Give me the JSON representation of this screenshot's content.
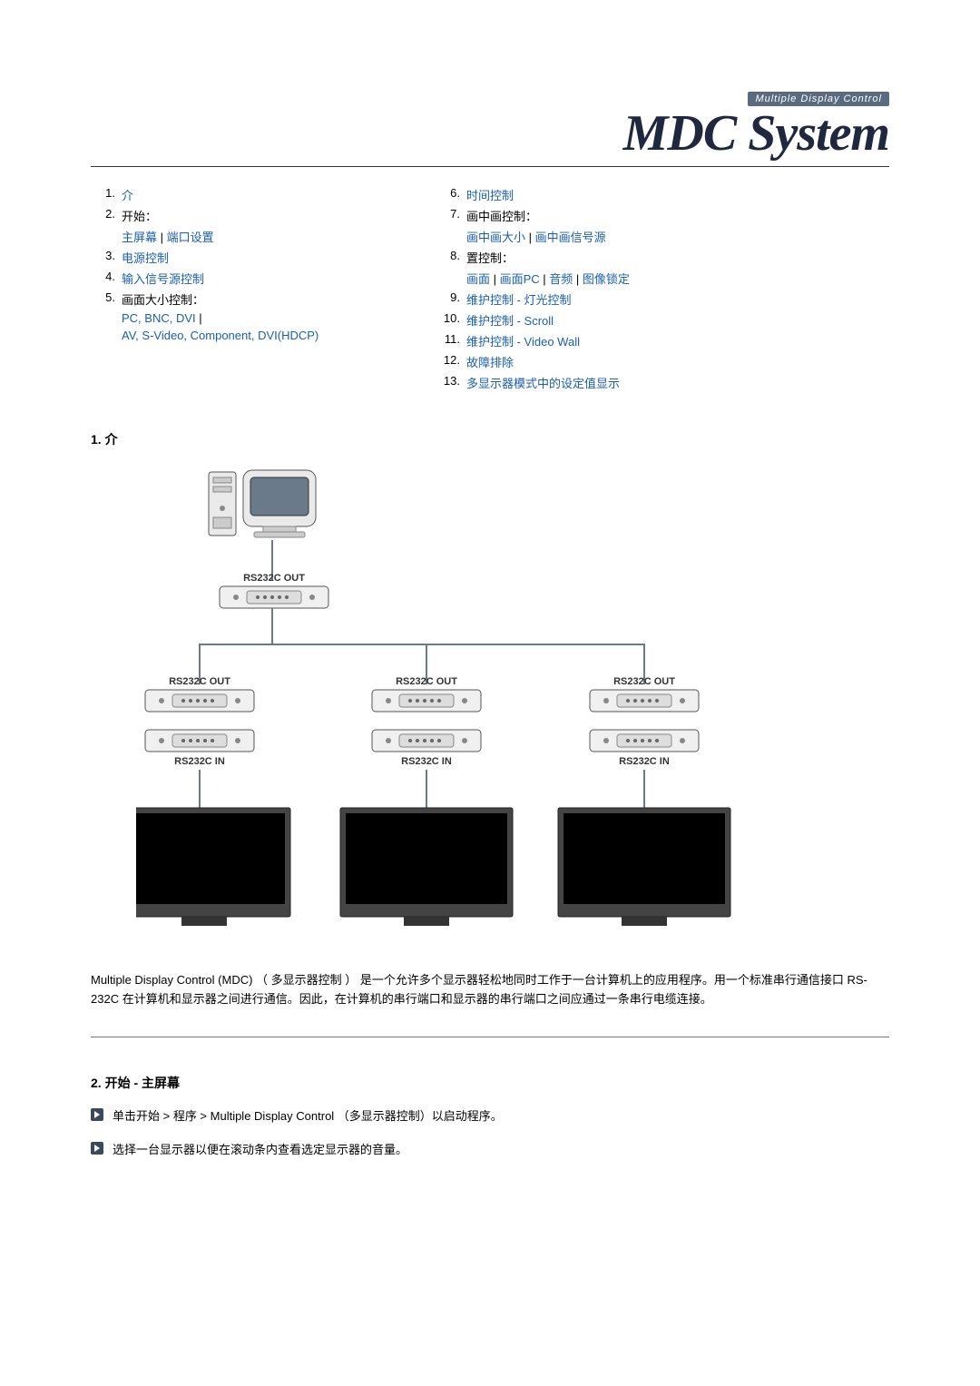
{
  "header": {
    "badge": "Multiple Display Control",
    "logo": "MDC System"
  },
  "toc_left": [
    {
      "num": "1.",
      "parts": [
        {
          "text": "介",
          "link": true
        }
      ]
    },
    {
      "num": "2.",
      "parts": [
        {
          "text": "开始：",
          "link": false
        }
      ]
    },
    {
      "num": "",
      "parts": [
        {
          "text": "主屏幕",
          "link": true
        },
        {
          "text": " | ",
          "link": false
        },
        {
          "text": "端口设置",
          "link": true
        }
      ]
    },
    {
      "num": "3.",
      "parts": [
        {
          "text": "电源控制",
          "link": true
        }
      ]
    },
    {
      "num": "4.",
      "parts": [
        {
          "text": "输入信号源控制",
          "link": true
        }
      ]
    },
    {
      "num": "5.",
      "parts": [
        {
          "text": "画面大小控制：",
          "link": false
        }
      ]
    },
    {
      "num": "",
      "parts": [
        {
          "text": "PC, BNC, DVI",
          "link": true
        },
        {
          "text": " | ",
          "link": false
        }
      ]
    },
    {
      "num": "",
      "parts": [
        {
          "text": "AV, S-Video, Component, DVI(HDCP)",
          "link": true
        }
      ]
    }
  ],
  "toc_right": [
    {
      "num": "6.",
      "parts": [
        {
          "text": "时间控制",
          "link": true
        }
      ]
    },
    {
      "num": "7.",
      "parts": [
        {
          "text": "画中画控制：",
          "link": false
        }
      ]
    },
    {
      "num": "",
      "parts": [
        {
          "text": "画中画大小",
          "link": true
        },
        {
          "text": " | ",
          "link": false
        },
        {
          "text": "画中画信号源",
          "link": true
        }
      ]
    },
    {
      "num": "8.",
      "parts": [
        {
          "text": "置控制：",
          "link": false
        }
      ]
    },
    {
      "num": "",
      "parts": [
        {
          "text": "画面",
          "link": true
        },
        {
          "text": " | ",
          "link": false
        },
        {
          "text": "画面PC",
          "link": true
        },
        {
          "text": " | ",
          "link": false
        },
        {
          "text": "音频",
          "link": true
        },
        {
          "text": " | ",
          "link": false
        },
        {
          "text": "图像锁定",
          "link": true
        }
      ]
    },
    {
      "num": "9.",
      "parts": [
        {
          "text": "维护控制 - 灯光控制",
          "link": true
        }
      ]
    },
    {
      "num": "10.",
      "parts": [
        {
          "text": "维护控制  - Scroll",
          "link": true
        }
      ]
    },
    {
      "num": "11.",
      "parts": [
        {
          "text": "维护控制  - Video Wall",
          "link": true
        }
      ]
    },
    {
      "num": "12.",
      "parts": [
        {
          "text": "故障排除",
          "link": true
        }
      ]
    },
    {
      "num": "13.",
      "parts": [
        {
          "text": "多显示器模式中的设定值显示",
          "link": true
        }
      ]
    }
  ],
  "section1": {
    "title": "1. 介"
  },
  "diagram": {
    "label_out": "RS232C OUT",
    "label_in": "RS232C IN"
  },
  "desc_text": "Multiple Display Control (MDC) （ 多显示器控制 ）  是一个允许多个显示器轻松地同时工作于一台计算机上的应用程序。用一个标准串行通信接口 RS-232C 在计算机和显示器之间进行通信。因此，在计算机的串行端口和显示器的串行端口之间应通过一条串行电缆连接。",
  "section2": {
    "title": "2. 开始 - 主屏幕",
    "bullets": [
      "单击开始 > 程序 > Multiple Display Control （多显示器控制）以启动程序。",
      "选择一台显示器以便在滚动条内查看选定显示器的音量。"
    ]
  }
}
